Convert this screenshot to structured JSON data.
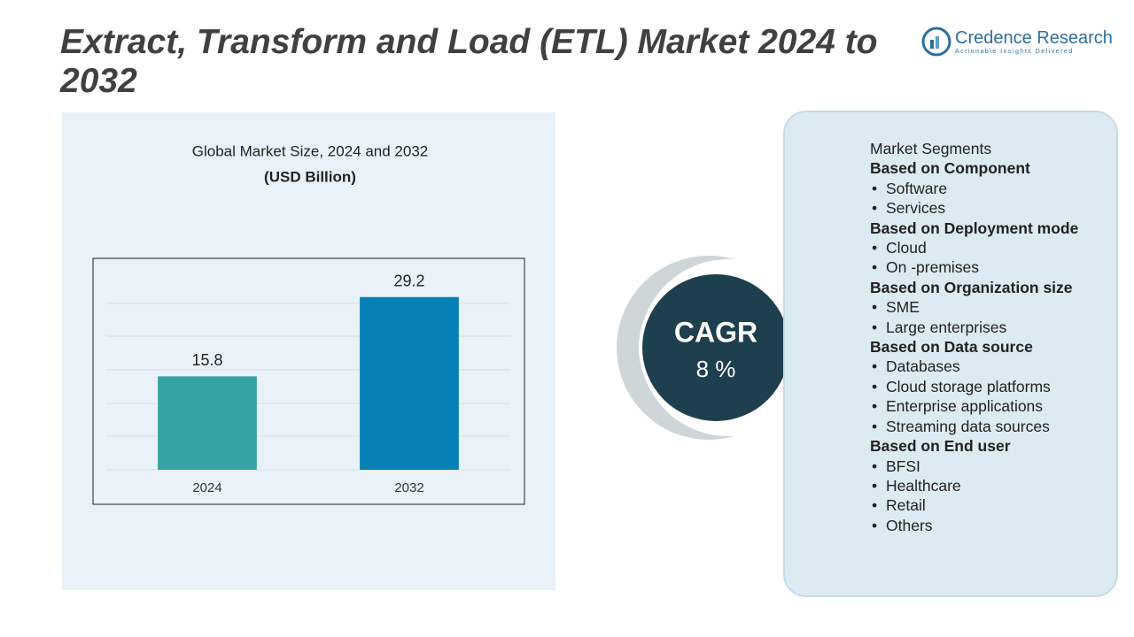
{
  "header": {
    "title": "Extract, Transform and Load (ETL) Market 2024 to 2032"
  },
  "logo": {
    "name": "Credence Research",
    "tagline": "Actionable Insights Delivered"
  },
  "chart_data": {
    "type": "bar",
    "title": "Global Market Size, 2024 and 2032",
    "subtitle": "(USD Billion)",
    "categories": [
      "2024",
      "2032"
    ],
    "values": [
      15.8,
      29.2
    ],
    "colors": [
      "#35a3a3",
      "#0680b5"
    ],
    "ylim": [
      0,
      35
    ]
  },
  "cagr": {
    "label": "CAGR",
    "value": "8 %"
  },
  "segments": {
    "title": "Market Segments",
    "groups": [
      {
        "heading": "Based on Component",
        "items": [
          "Software",
          "Services"
        ]
      },
      {
        "heading": "Based on Deployment mode",
        "items": [
          "Cloud",
          "On -premises"
        ]
      },
      {
        "heading": "Based on Organization size",
        "items": [
          "SME",
          "Large enterprises"
        ]
      },
      {
        "heading": "Based on Data source",
        "items": [
          "Databases",
          "Cloud storage platforms",
          "Enterprise applications",
          "Streaming data sources"
        ]
      },
      {
        "heading": "Based on End user",
        "items": [
          "BFSI",
          "Healthcare",
          "Retail",
          "Others"
        ]
      }
    ]
  }
}
